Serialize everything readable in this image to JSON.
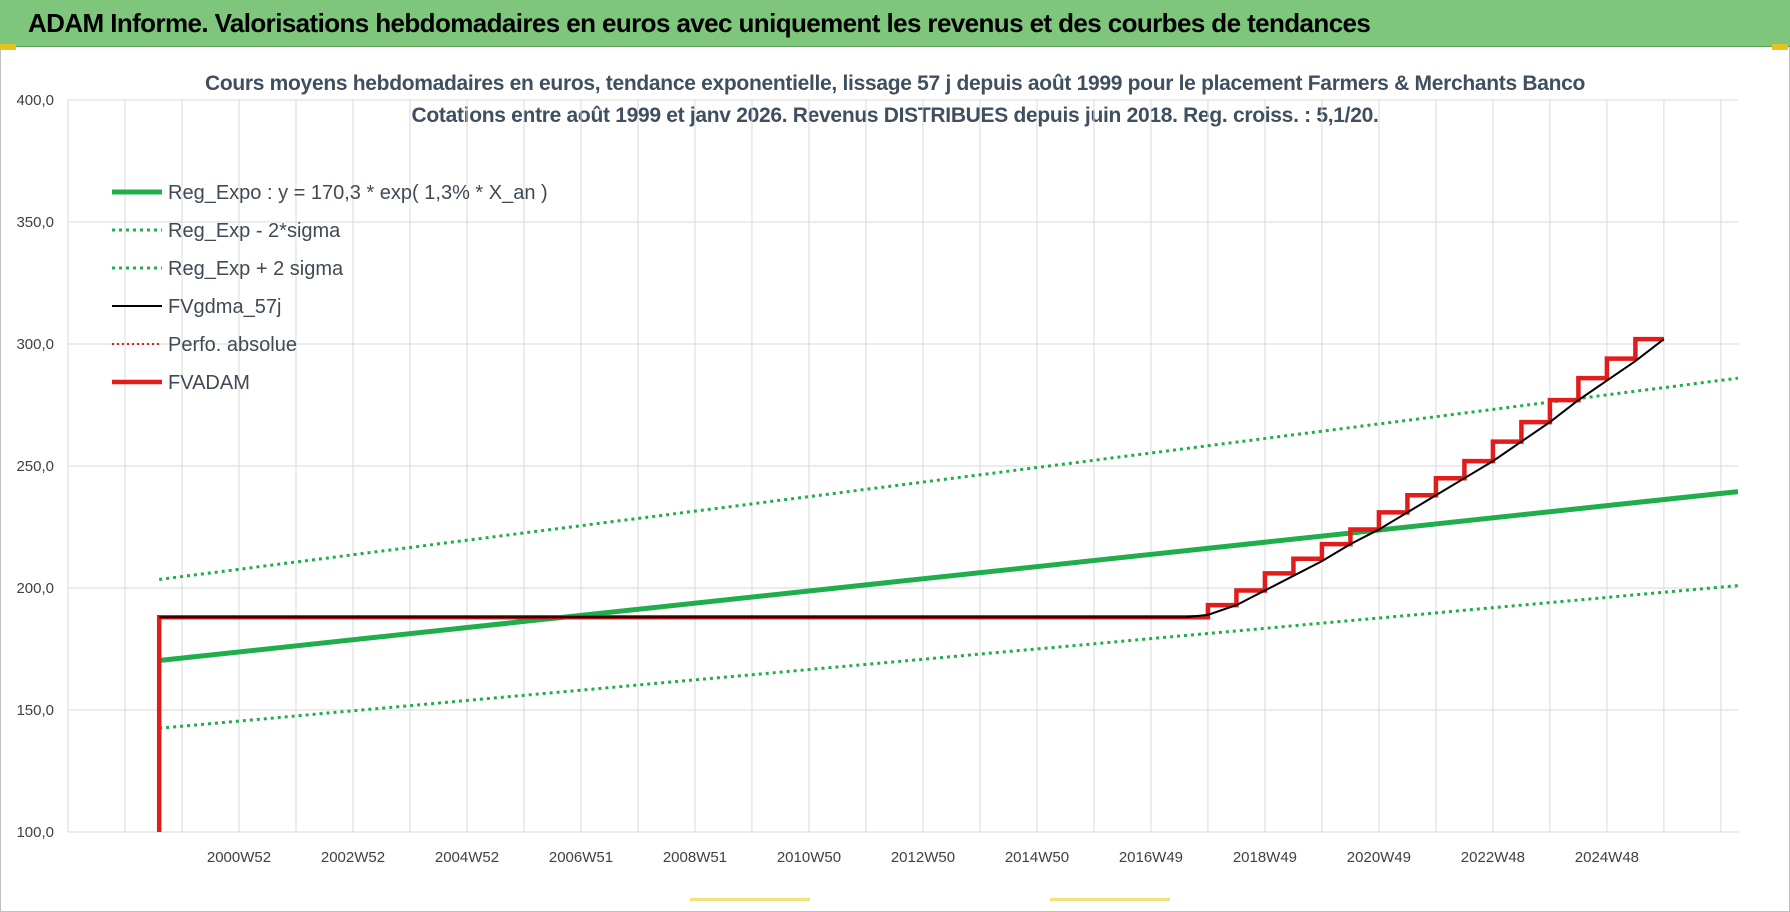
{
  "header": {
    "title": "ADAM Informe. Valorisations hebdomadaires en euros avec uniquement les revenus et des courbes de tendances"
  },
  "colors": {
    "header_bg": "#7dc67b",
    "green": "#1fae4b",
    "red": "#e31b1b",
    "black": "#000000",
    "grid": "#d9d9d9"
  },
  "chart_data": {
    "type": "line",
    "title_line1": "Cours moyens hebdomadaires en euros, tendance exponentielle, lissage 57 j depuis août 1999 pour le placement Farmers & Merchants Banco",
    "title_line2": "Cotations entre août 1999 et janv 2026. Revenus DISTRIBUES depuis juin 2018. Reg. croiss. : 5,1/20.",
    "ylim": [
      100,
      400
    ],
    "xlim": [
      1997.0,
      2026.3
    ],
    "y_ticks": [
      100,
      150,
      200,
      250,
      300,
      350,
      400
    ],
    "y_tick_labels": [
      "100,0",
      "150,0",
      "200,0",
      "250,0",
      "300,0",
      "350,0",
      "400,0"
    ],
    "x_tick_labels": [
      "2000W52",
      "2002W52",
      "2004W52",
      "2006W51",
      "2008W51",
      "2010W50",
      "2012W50",
      "2014W50",
      "2016W49",
      "2018W49",
      "2020W49",
      "2022W48",
      "2024W48"
    ],
    "x_tick_values": [
      2000.0,
      2002.0,
      2004.0,
      2006.0,
      2008.0,
      2010.0,
      2012.0,
      2014.0,
      2016.0,
      2018.0,
      2020.0,
      2022.0,
      2024.0
    ],
    "x_gridlines": [
      1997.0,
      1998.0,
      1999.0,
      2000.0,
      2001.0,
      2002.0,
      2003.0,
      2004.0,
      2005.0,
      2006.0,
      2007.0,
      2008.0,
      2009.0,
      2010.0,
      2011.0,
      2012.0,
      2013.0,
      2014.0,
      2015.0,
      2016.0,
      2017.0,
      2018.0,
      2019.0,
      2020.0,
      2021.0,
      2022.0,
      2023.0,
      2024.0,
      2025.0,
      2026.0
    ],
    "legend_position": "top-left",
    "series": [
      {
        "name": "Reg_Expo : y = 170,3 * exp( 1,3% *  X_an )",
        "style": "solid-thick",
        "color": "#1fae4b",
        "points": [
          [
            1998.6,
            170.3
          ],
          [
            2026.3,
            239.5
          ]
        ]
      },
      {
        "name": "Reg_Exp - 2*sigma",
        "style": "dotted",
        "color": "#1fae4b",
        "points": [
          [
            1998.6,
            142.5
          ],
          [
            2026.3,
            201.0
          ]
        ]
      },
      {
        "name": "Reg_Exp + 2 sigma",
        "style": "dotted",
        "color": "#1fae4b",
        "points": [
          [
            1998.6,
            203.5
          ],
          [
            2026.3,
            286.0
          ]
        ]
      },
      {
        "name": "FVgdma_57j",
        "style": "solid",
        "color": "#000000",
        "points": [
          [
            1998.6,
            188
          ],
          [
            2016.6,
            188
          ],
          [
            2017.0,
            189
          ],
          [
            2017.5,
            193
          ],
          [
            2018.0,
            199
          ],
          [
            2018.5,
            205
          ],
          [
            2019.0,
            211
          ],
          [
            2019.5,
            218
          ],
          [
            2020.0,
            224
          ],
          [
            2020.5,
            231
          ],
          [
            2021.0,
            238
          ],
          [
            2021.5,
            245
          ],
          [
            2022.0,
            252
          ],
          [
            2022.5,
            260
          ],
          [
            2023.0,
            268
          ],
          [
            2023.5,
            277
          ],
          [
            2024.0,
            285
          ],
          [
            2024.5,
            293
          ],
          [
            2025.0,
            302
          ]
        ]
      },
      {
        "name": "Perfo. absolue",
        "style": "dotted",
        "color": "#e31b1b",
        "points": []
      },
      {
        "name": "FVADAM",
        "style": "step-thick",
        "color": "#e31b1b",
        "start": [
          1998.6,
          100
        ],
        "steps": [
          [
            1998.6,
            188
          ],
          [
            2017.0,
            193
          ],
          [
            2017.5,
            199
          ],
          [
            2018.0,
            206
          ],
          [
            2018.5,
            212
          ],
          [
            2019.0,
            218
          ],
          [
            2019.5,
            224
          ],
          [
            2020.0,
            231
          ],
          [
            2020.5,
            238
          ],
          [
            2021.0,
            245
          ],
          [
            2021.5,
            252
          ],
          [
            2022.0,
            260
          ],
          [
            2022.5,
            268
          ],
          [
            2023.0,
            277
          ],
          [
            2023.5,
            286
          ],
          [
            2024.0,
            294
          ],
          [
            2024.5,
            302
          ]
        ],
        "end_x": 2025.0
      }
    ]
  }
}
